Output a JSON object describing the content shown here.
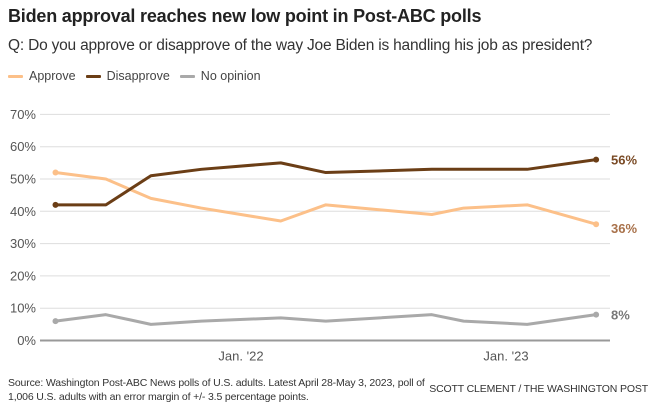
{
  "chart_data": {
    "type": "line",
    "title": "Biden approval reaches new low point in Post-ABC polls",
    "subtitle": "Q: Do you approve or disapprove of the way Joe Biden is handling his job as president?",
    "xlabel": "",
    "ylabel": "",
    "ylim": [
      0,
      70
    ],
    "yticks": [
      0,
      10,
      20,
      30,
      40,
      50,
      60,
      70
    ],
    "ytick_labels": [
      "0%",
      "10%",
      "20%",
      "30%",
      "40%",
      "50%",
      "60%",
      "70%"
    ],
    "xticks": [
      {
        "value": 2022.0,
        "label": "Jan. '22"
      },
      {
        "value": 2023.0,
        "label": "Jan. '23"
      }
    ],
    "xlim": [
      2021.2,
      2023.45
    ],
    "grid": true,
    "legend_position": "top-left",
    "x": [
      2021.3,
      2021.49,
      2021.66,
      2021.85,
      2022.15,
      2022.32,
      2022.72,
      2022.84,
      2023.08,
      2023.34
    ],
    "series": [
      {
        "name": "Approve",
        "color": "#fcc089",
        "label_color": "#a8714a",
        "end_label": "36%",
        "values": [
          52,
          50,
          44,
          41,
          37,
          42,
          39,
          41,
          42,
          36
        ]
      },
      {
        "name": "Disapprove",
        "color": "#6b3e16",
        "label_color": "#7a4b26",
        "end_label": "56%",
        "values": [
          42,
          42,
          51,
          53,
          55,
          52,
          53,
          53,
          53,
          56
        ]
      },
      {
        "name": "No opinion",
        "color": "#a9a9a9",
        "label_color": "#777777",
        "end_label": "8%",
        "values": [
          6,
          8,
          5,
          6,
          7,
          6,
          8,
          6,
          5,
          8
        ]
      }
    ]
  },
  "footer": {
    "source": "Source: Washington Post-ABC News polls of U.S. adults. Latest April 28-May 3, 2023, poll of 1,006 U.S. adults with an error margin of +/- 3.5 percentage points.",
    "credit": "SCOTT CLEMENT / THE WASHINGTON POST"
  }
}
